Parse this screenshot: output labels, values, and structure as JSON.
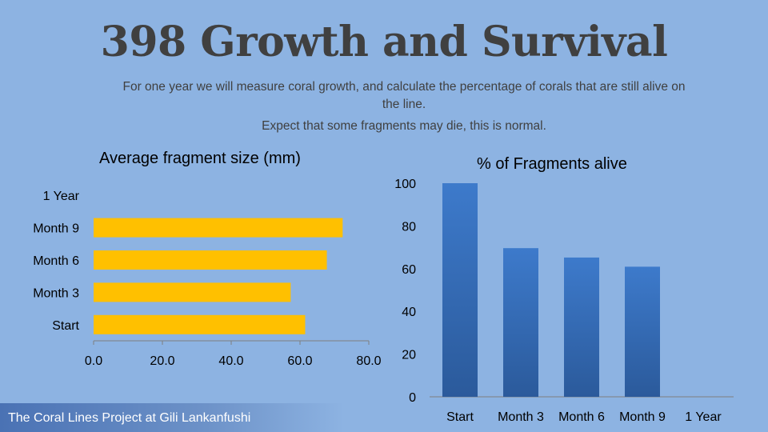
{
  "slide": {
    "title": "398 Growth and Survival",
    "subtitle": "For one year we will measure coral growth, and calculate the percentage of corals that are still alive on the line.",
    "note": "Expect that some fragments may die, this is normal.",
    "footer": "The Coral Lines Project at Gili Lankanfushi"
  },
  "chart_data": [
    {
      "type": "bar",
      "orientation": "horizontal",
      "title": "Average fragment size (mm)",
      "categories": [
        "Start",
        "Month 3",
        "Month 6",
        "Month 9",
        "1 Year"
      ],
      "values": [
        61.5,
        57.3,
        67.8,
        72.4,
        null
      ],
      "xlim": [
        0,
        80
      ],
      "ticks": [
        "0.0",
        "20.0",
        "40.0",
        "60.0",
        "80.0"
      ],
      "color": "#ffc000",
      "grid": false
    },
    {
      "type": "bar",
      "orientation": "vertical",
      "title": "% of Fragments alive",
      "categories": [
        "Start",
        "Month 3",
        "Month 6",
        "Month 9",
        "1 Year"
      ],
      "values": [
        100,
        69.6,
        65.2,
        60.9,
        null
      ],
      "ylim": [
        0,
        100
      ],
      "ticks": [
        "0",
        "20",
        "40",
        "60",
        "80",
        "100"
      ],
      "color": "#3a72c0",
      "grid": false
    }
  ]
}
